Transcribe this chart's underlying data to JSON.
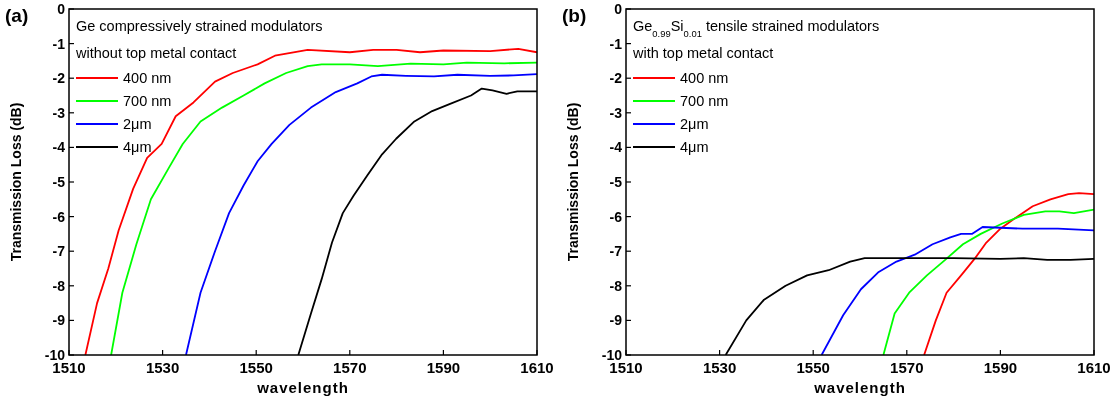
{
  "chart_data": [
    {
      "type": "line",
      "title": "(a)",
      "legend_title": "Ge compressively strained modulators without top metal contact",
      "xlabel": "wavelength",
      "ylabel": "Transmission Loss (dB)",
      "xlim": [
        1510,
        1610
      ],
      "ylim": [
        -10,
        0
      ],
      "xticks": [
        1510,
        1530,
        1550,
        1570,
        1590,
        1610
      ],
      "yticks": [
        -10,
        -9,
        -8,
        -7,
        -6,
        -5,
        -4,
        -3,
        -2,
        -1,
        0
      ],
      "grid": false,
      "legend": "top left",
      "line_style": "solid",
      "series": [
        {
          "name": "400 nm",
          "color": "#ff0000",
          "x": [
            1513.5,
            1516,
            1518.4,
            1520.6,
            1523.7,
            1526.7,
            1529.8,
            1532.8,
            1536.6,
            1541.2,
            1545,
            1550.3,
            1554,
            1561,
            1570,
            1575,
            1580,
            1585,
            1590,
            1600,
            1606,
            1610
          ],
          "values": [
            -10,
            -8.5,
            -7.5,
            -6.4,
            -5.2,
            -4.3,
            -3.9,
            -3.1,
            -2.7,
            -2.1,
            -1.85,
            -1.6,
            -1.35,
            -1.18,
            -1.25,
            -1.18,
            -1.18,
            -1.25,
            -1.2,
            -1.22,
            -1.15,
            -1.25
          ]
        },
        {
          "name": "700 nm",
          "color": "#00ff00",
          "x": [
            1519,
            1521.4,
            1524.4,
            1527.5,
            1531.3,
            1534.3,
            1538.1,
            1542.7,
            1547.3,
            1551.8,
            1556.4,
            1561,
            1564,
            1570,
            1576,
            1583,
            1590,
            1595,
            1603,
            1610
          ],
          "values": [
            -10,
            -8.2,
            -6.8,
            -5.5,
            -4.6,
            -3.9,
            -3.25,
            -2.85,
            -2.5,
            -2.15,
            -1.85,
            -1.65,
            -1.6,
            -1.6,
            -1.65,
            -1.58,
            -1.6,
            -1.55,
            -1.57,
            -1.55
          ]
        },
        {
          "name": "2μm",
          "color": "#0000ff",
          "x": [
            1535,
            1538.1,
            1541.2,
            1544.2,
            1547.3,
            1550.3,
            1553.3,
            1557.1,
            1561.7,
            1567,
            1571.6,
            1574.6,
            1576.9,
            1582,
            1588,
            1593,
            1600,
            1605,
            1610
          ],
          "values": [
            -10,
            -8.2,
            -7,
            -5.9,
            -5.1,
            -4.4,
            -3.9,
            -3.35,
            -2.85,
            -2.4,
            -2.15,
            -1.95,
            -1.9,
            -1.93,
            -1.95,
            -1.9,
            -1.93,
            -1.92,
            -1.88
          ]
        },
        {
          "name": "4μm",
          "color": "#000000",
          "x": [
            1559,
            1561.7,
            1564,
            1566.2,
            1568.5,
            1570.8,
            1573.8,
            1576.9,
            1579.9,
            1583.8,
            1587.6,
            1591.3,
            1595.9,
            1598.2,
            1600.5,
            1603.5,
            1605.8,
            1610
          ],
          "values": [
            -10,
            -8.8,
            -7.8,
            -6.75,
            -5.9,
            -5.4,
            -4.8,
            -4.2,
            -3.75,
            -3.25,
            -2.95,
            -2.75,
            -2.5,
            -2.3,
            -2.35,
            -2.45,
            -2.38,
            -2.38
          ]
        }
      ]
    },
    {
      "type": "line",
      "title": "(b)",
      "legend_title": "Ge$_{0.99}$Si$_{0.01}$ tensile strained modulators with top metal contact",
      "xlabel": "wavelength",
      "ylabel": "Transmission Loss (dB)",
      "xlim": [
        1510,
        1610
      ],
      "ylim": [
        -10,
        0
      ],
      "xticks": [
        1510,
        1530,
        1550,
        1570,
        1590,
        1610
      ],
      "yticks": [
        -10,
        -9,
        -8,
        -7,
        -6,
        -5,
        -4,
        -3,
        -2,
        -1,
        0
      ],
      "grid": false,
      "legend": "top left",
      "line_style": "solid",
      "series": [
        {
          "name": "400 nm",
          "color": "#ff0000",
          "x": [
            1573.7,
            1576.2,
            1578.5,
            1581.6,
            1584.6,
            1587,
            1590,
            1593.1,
            1596.9,
            1600.7,
            1604.5,
            1606.8,
            1610
          ],
          "values": [
            -10,
            -9,
            -8.2,
            -7.7,
            -7.2,
            -6.75,
            -6.35,
            -6.05,
            -5.7,
            -5.5,
            -5.35,
            -5.32,
            -5.35
          ]
        },
        {
          "name": "700 nm",
          "color": "#00ff00",
          "x": [
            1565,
            1567.4,
            1570.5,
            1574.3,
            1578.2,
            1582,
            1585.8,
            1590.4,
            1595,
            1599.6,
            1602.6,
            1605.7,
            1610
          ],
          "values": [
            -10,
            -8.8,
            -8.2,
            -7.7,
            -7.25,
            -6.8,
            -6.5,
            -6.2,
            -5.95,
            -5.85,
            -5.85,
            -5.9,
            -5.8
          ]
        },
        {
          "name": "2μm",
          "color": "#0000ff",
          "x": [
            1551.8,
            1556.4,
            1560.2,
            1564,
            1567.8,
            1571.7,
            1575.5,
            1579.3,
            1581.6,
            1583.9,
            1586.2,
            1594.7,
            1602.3,
            1610
          ],
          "values": [
            -10,
            -8.85,
            -8.1,
            -7.6,
            -7.3,
            -7.1,
            -6.8,
            -6.6,
            -6.5,
            -6.5,
            -6.3,
            -6.35,
            -6.35,
            -6.4
          ]
        },
        {
          "name": "4μm",
          "color": "#000000",
          "x": [
            1531.3,
            1535.7,
            1539.5,
            1544.1,
            1548.7,
            1553.3,
            1557.9,
            1561,
            1570,
            1580,
            1590,
            1595,
            1600,
            1605,
            1610
          ],
          "values": [
            -10,
            -9,
            -8.4,
            -8,
            -7.7,
            -7.55,
            -7.3,
            -7.2,
            -7.2,
            -7.2,
            -7.22,
            -7.2,
            -7.25,
            -7.25,
            -7.22
          ]
        }
      ]
    }
  ]
}
